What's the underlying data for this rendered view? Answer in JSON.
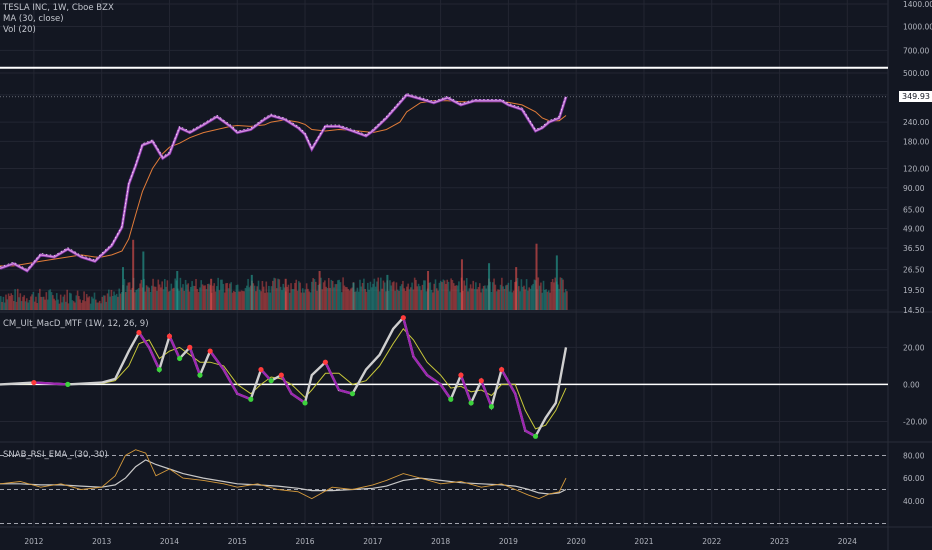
{
  "legend": {
    "symbol": "TESLA INC, 1W, Cboe BZX",
    "ma": "MA (30, close)",
    "vol": "Vol (20)",
    "macd": "CM_Ult_MacD_MTF (1W, 12, 26, 9)",
    "rsi": "SNAB_RSI_EMA_ (30, 30)"
  },
  "colors": {
    "background": "#131722",
    "grid": "#232632",
    "text": "#b2b5be",
    "price_line": "#d58ee0",
    "price_dark": "#7b2fa0",
    "ma": "#e07b39",
    "vol_up": "#26a69a",
    "vol_down": "#ef5350",
    "macd_line": "#cfcfcf",
    "macd_signal": "#c8c83a",
    "macd_up_dot": "#3dd23d",
    "macd_down_dot": "#ff3b3b",
    "macd_fall": "#9c27b0",
    "rsi_line": "#d59a3c",
    "rsi_ema": "#c8c8c8",
    "hline": "#ffffff"
  },
  "chart_data": [
    {
      "type": "line",
      "panel": "price",
      "scale": "log",
      "ylim": [
        14.5,
        1400
      ],
      "yticks": [
        "1400.00",
        "1000.00",
        "700.00",
        "500.00",
        "360.00",
        "240.00",
        "180.00",
        "120.00",
        "90.00",
        "65.00",
        "49.00",
        "36.50",
        "26.50",
        "19.50",
        "14.50"
      ],
      "ytick_values": [
        1400,
        1000,
        700,
        500,
        360,
        240,
        180,
        120,
        90,
        65,
        49,
        36.5,
        26.5,
        19.5,
        14.5
      ],
      "last_price_label": "349.93",
      "last_price": 349.93,
      "horizontal_line": 540,
      "x": [
        2011.5,
        2011.7,
        2011.9,
        2012.1,
        2012.3,
        2012.5,
        2012.7,
        2012.9,
        2013.0,
        2013.15,
        2013.3,
        2013.4,
        2013.5,
        2013.6,
        2013.75,
        2013.9,
        2014.0,
        2014.15,
        2014.3,
        2014.5,
        2014.7,
        2014.9,
        2015.0,
        2015.2,
        2015.4,
        2015.5,
        2015.7,
        2015.9,
        2016.0,
        2016.1,
        2016.3,
        2016.5,
        2016.7,
        2016.9,
        2017.0,
        2017.2,
        2017.4,
        2017.5,
        2017.7,
        2017.9,
        2018.1,
        2018.3,
        2018.5,
        2018.7,
        2018.9,
        2019.0,
        2019.2,
        2019.4,
        2019.5,
        2019.6,
        2019.75,
        2019.85
      ],
      "series": [
        {
          "name": "",
          "values": [
            27,
            29,
            26,
            33,
            32,
            36,
            32,
            30,
            33,
            38,
            50,
            95,
            125,
            170,
            180,
            140,
            150,
            220,
            205,
            230,
            260,
            225,
            205,
            215,
            250,
            265,
            250,
            220,
            200,
            160,
            225,
            225,
            210,
            195,
            210,
            255,
            320,
            360,
            340,
            320,
            345,
            310,
            330,
            330,
            330,
            310,
            290,
            210,
            220,
            240,
            255,
            349.93
          ]
        },
        {
          "name": "",
          "values": [
            28,
            28,
            29,
            30,
            31,
            32,
            33,
            32,
            32,
            33,
            35,
            42,
            60,
            85,
            120,
            150,
            165,
            175,
            190,
            205,
            215,
            225,
            228,
            225,
            230,
            240,
            248,
            240,
            232,
            215,
            210,
            215,
            212,
            208,
            205,
            215,
            240,
            280,
            320,
            330,
            330,
            325,
            325,
            325,
            325,
            322,
            310,
            280,
            255,
            245,
            245,
            265
          ]
        }
      ]
    },
    {
      "type": "bar",
      "panel": "volume",
      "x": [
        2013.3,
        2013.45,
        2013.6,
        2014.1,
        2014.6,
        2015.2,
        2015.7,
        2016.2,
        2016.7,
        2017.2,
        2017.8,
        2018.3,
        2018.7,
        2019.1,
        2019.4,
        2019.7
      ],
      "values": [
        0.55,
        0.9,
        0.75,
        0.5,
        0.4,
        0.45,
        0.4,
        0.5,
        0.35,
        0.45,
        0.5,
        0.65,
        0.6,
        0.55,
        0.85,
        0.7
      ],
      "up": [
        true,
        false,
        true,
        true,
        false,
        true,
        false,
        false,
        true,
        true,
        false,
        false,
        true,
        false,
        false,
        true
      ]
    },
    {
      "type": "line",
      "panel": "macd",
      "ylim": [
        -30,
        38
      ],
      "yticks": [
        "20.00",
        "0.00",
        "-20.00"
      ],
      "ytick_values": [
        20,
        0,
        -20
      ],
      "x": [
        2011.5,
        2012.0,
        2012.5,
        2013.0,
        2013.2,
        2013.4,
        2013.55,
        2013.7,
        2013.85,
        2014.0,
        2014.15,
        2014.3,
        2014.45,
        2014.6,
        2014.8,
        2015.0,
        2015.2,
        2015.35,
        2015.5,
        2015.65,
        2015.8,
        2016.0,
        2016.1,
        2016.3,
        2016.5,
        2016.7,
        2016.9,
        2017.1,
        2017.3,
        2017.45,
        2017.6,
        2017.8,
        2018.0,
        2018.15,
        2018.3,
        2018.45,
        2018.6,
        2018.75,
        2018.9,
        2019.1,
        2019.25,
        2019.4,
        2019.55,
        2019.7,
        2019.85
      ],
      "series": [
        {
          "name": "",
          "values": [
            0,
            1,
            0,
            1,
            3,
            18,
            28,
            20,
            8,
            26,
            14,
            20,
            5,
            18,
            8,
            -5,
            -8,
            8,
            2,
            5,
            -5,
            -10,
            5,
            12,
            -3,
            -5,
            8,
            16,
            30,
            36,
            15,
            5,
            0,
            -8,
            5,
            -10,
            2,
            -12,
            8,
            -5,
            -25,
            -28,
            -18,
            -10,
            20
          ]
        },
        {
          "name": "",
          "values": [
            0,
            0.5,
            0.5,
            0.5,
            2,
            10,
            22,
            24,
            14,
            18,
            20,
            16,
            12,
            12,
            10,
            0,
            -5,
            0,
            4,
            3,
            0,
            -7,
            -3,
            6,
            6,
            0,
            2,
            10,
            22,
            30,
            24,
            12,
            5,
            -2,
            -1,
            -4,
            -3,
            -6,
            0,
            0,
            -14,
            -24,
            -22,
            -14,
            -2
          ]
        }
      ]
    },
    {
      "type": "line",
      "panel": "rsi",
      "ylim": [
        17,
        90
      ],
      "yticks": [
        "80.00",
        "60.00",
        "40.00"
      ],
      "ytick_values": [
        80,
        60,
        40
      ],
      "dashed_levels": [
        80,
        50,
        20
      ],
      "x": [
        2011.5,
        2011.8,
        2012.1,
        2012.4,
        2012.7,
        2013.0,
        2013.2,
        2013.35,
        2013.5,
        2013.65,
        2013.8,
        2014.0,
        2014.2,
        2014.5,
        2014.8,
        2015.0,
        2015.3,
        2015.6,
        2015.9,
        2016.1,
        2016.4,
        2016.7,
        2017.0,
        2017.2,
        2017.45,
        2017.7,
        2018.0,
        2018.3,
        2018.6,
        2018.9,
        2019.1,
        2019.3,
        2019.45,
        2019.6,
        2019.75,
        2019.85
      ],
      "series": [
        {
          "name": "",
          "values": [
            55,
            57,
            52,
            55,
            50,
            52,
            62,
            80,
            85,
            82,
            62,
            68,
            60,
            58,
            55,
            52,
            55,
            50,
            48,
            42,
            52,
            50,
            54,
            58,
            64,
            60,
            55,
            57,
            52,
            55,
            50,
            45,
            42,
            46,
            48,
            60
          ]
        },
        {
          "name": "",
          "values": [
            55,
            55,
            54,
            54,
            53,
            52,
            54,
            60,
            70,
            76,
            72,
            68,
            64,
            60,
            57,
            55,
            54,
            53,
            51,
            49,
            49,
            50,
            51,
            53,
            58,
            60,
            58,
            56,
            55,
            54,
            53,
            50,
            47,
            46,
            47,
            50
          ]
        }
      ]
    }
  ],
  "xaxis": {
    "labels": [
      "2012",
      "2013",
      "2014",
      "2015",
      "2016",
      "2017",
      "2018",
      "2019",
      "2020",
      "2021",
      "2022",
      "2023",
      "2024"
    ],
    "values": [
      2012,
      2013,
      2014,
      2015,
      2016,
      2017,
      2018,
      2019,
      2020,
      2021,
      2022,
      2023,
      2024
    ]
  }
}
